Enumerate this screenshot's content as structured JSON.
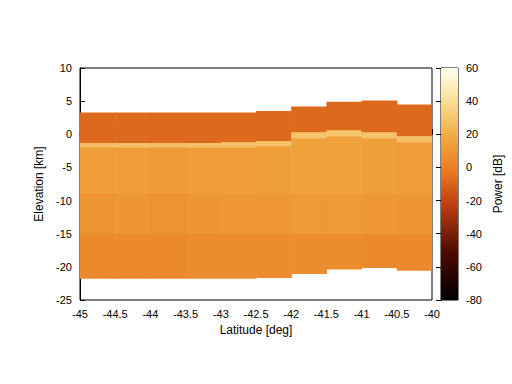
{
  "chart_data": {
    "type": "heatmap",
    "x_label": "Latitude [deg]",
    "y_label": "Elevation [km]",
    "xlim": [
      -45,
      -40
    ],
    "xticks": [
      -45,
      -44.5,
      -44,
      -43.5,
      -43,
      -42.5,
      -42,
      -41.5,
      -41,
      -40.5,
      -40
    ],
    "ylim": [
      -25,
      10
    ],
    "yticks": [
      -25,
      -20,
      -15,
      -10,
      -5,
      0,
      5,
      10
    ],
    "grid": false,
    "columns": [
      {
        "x": [
          -45,
          -44.5
        ],
        "y_edges": [
          3.3,
          -1.3,
          -2.0,
          -9,
          -15,
          -21.7
        ],
        "power": [
          -8,
          27,
          13,
          9,
          5
        ]
      },
      {
        "x": [
          -44.5,
          -44
        ],
        "y_edges": [
          3.3,
          -1.3,
          -2.0,
          -9,
          -15,
          -21.7
        ],
        "power": [
          -8,
          28,
          13,
          10,
          5
        ]
      },
      {
        "x": [
          -44,
          -43.5
        ],
        "y_edges": [
          3.3,
          -1.3,
          -2.0,
          -9,
          -15,
          -21.7
        ],
        "power": [
          -8,
          27,
          12,
          9,
          5
        ]
      },
      {
        "x": [
          -43.5,
          -43
        ],
        "y_edges": [
          3.3,
          -1.3,
          -2.0,
          -9,
          -15,
          -21.7
        ],
        "power": [
          -8,
          28,
          13,
          10,
          6
        ]
      },
      {
        "x": [
          -43,
          -42.5
        ],
        "y_edges": [
          3.3,
          -1.2,
          -2.0,
          -9,
          -15,
          -21.7
        ],
        "power": [
          -8,
          28,
          13,
          11,
          6
        ]
      },
      {
        "x": [
          -42.5,
          -42
        ],
        "y_edges": [
          3.5,
          -1.0,
          -1.8,
          -9,
          -15,
          -21.6
        ],
        "power": [
          -8,
          28,
          14,
          11,
          6
        ]
      },
      {
        "x": [
          -42,
          -41.5
        ],
        "y_edges": [
          4.2,
          0.3,
          -0.6,
          -9,
          -15,
          -21.0
        ],
        "power": [
          -8,
          29,
          15,
          12,
          6
        ]
      },
      {
        "x": [
          -41.5,
          -41
        ],
        "y_edges": [
          4.9,
          0.6,
          -0.3,
          -9,
          -15,
          -20.3
        ],
        "power": [
          -8,
          30,
          15,
          12,
          6
        ]
      },
      {
        "x": [
          -41,
          -40.5
        ],
        "y_edges": [
          5.1,
          0.3,
          -0.6,
          -9,
          -15,
          -20.1
        ],
        "power": [
          -8,
          29,
          14,
          11,
          5
        ]
      },
      {
        "x": [
          -40.5,
          -40
        ],
        "y_edges": [
          4.5,
          -0.3,
          -1.2,
          -9,
          -15,
          -20.5
        ],
        "power": [
          -8,
          28,
          13,
          10,
          5
        ]
      }
    ],
    "colorbar": {
      "label": "Power [dB]",
      "range": [
        -80,
        60
      ],
      "ticks": [
        -80,
        -60,
        -40,
        -20,
        0,
        20,
        40,
        60
      ]
    }
  }
}
